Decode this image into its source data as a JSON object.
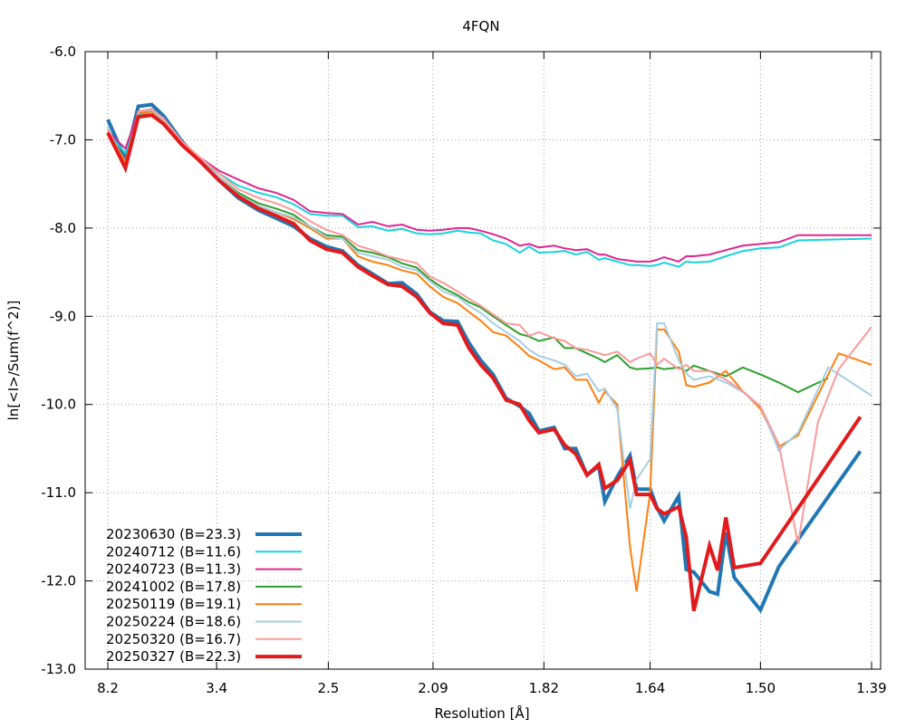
{
  "chart_data": {
    "type": "line",
    "title": "4FQN",
    "xlabel": "Resolution [Å]",
    "ylabel": "ln[<I>/Sum(f^2)]",
    "xaxis": "resolution shown as d-spacing; ticks placed uniformly in 1/d^2",
    "xlim_d": [
      8.2,
      1.39
    ],
    "ylim": [
      -13.0,
      -6.0
    ],
    "grid": true,
    "legend_position": "bottom-left",
    "x_ticks": [
      {
        "label": "8.2",
        "d": 8.2
      },
      {
        "label": "3.4",
        "d": 3.4
      },
      {
        "label": "2.5",
        "d": 2.5
      },
      {
        "label": "2.09",
        "d": 2.09
      },
      {
        "label": "1.82",
        "d": 1.82
      },
      {
        "label": "1.64",
        "d": 1.64
      },
      {
        "label": "1.50",
        "d": 1.5
      },
      {
        "label": "1.39",
        "d": 1.39
      }
    ],
    "y_ticks": [
      {
        "label": "-6.0",
        "v": -6.0
      },
      {
        "label": "-7.0",
        "v": -7.0
      },
      {
        "label": "-8.0",
        "v": -8.0
      },
      {
        "label": "-9.0",
        "v": -9.0
      },
      {
        "label": "-10.0",
        "v": -10.0
      },
      {
        "label": "-11.0",
        "v": -11.0
      },
      {
        "label": "-12.0",
        "v": -12.0
      },
      {
        "label": "-13.0",
        "v": -13.0
      }
    ],
    "series": [
      {
        "name": "20230630 (B=23.3)",
        "color": "#1f77b4",
        "width": 4,
        "x": [
          8.2,
          6.15,
          5.35,
          4.78,
          4.4,
          3.96,
          3.64,
          3.37,
          3.15,
          2.96,
          2.82,
          2.7,
          2.6,
          2.51,
          2.43,
          2.36,
          2.3,
          2.24,
          2.19,
          2.14,
          2.1,
          2.06,
          2.02,
          1.99,
          1.96,
          1.93,
          1.9,
          1.87,
          1.85,
          1.83,
          1.8,
          1.78,
          1.76,
          1.74,
          1.72,
          1.71,
          1.69,
          1.67,
          1.66,
          1.64,
          1.63,
          1.62,
          1.6,
          1.59,
          1.58,
          1.56,
          1.55,
          1.54,
          1.53,
          1.5,
          1.48,
          1.4
        ],
        "y": [
          -6.77,
          -7.22,
          -6.62,
          -6.6,
          -6.73,
          -7.02,
          -7.24,
          -7.46,
          -7.66,
          -7.8,
          -7.89,
          -7.98,
          -8.12,
          -8.21,
          -8.26,
          -8.42,
          -8.52,
          -8.63,
          -8.62,
          -8.75,
          -8.95,
          -9.05,
          -9.06,
          -9.3,
          -9.5,
          -9.66,
          -9.93,
          -10.02,
          -10.1,
          -10.3,
          -10.26,
          -10.5,
          -10.5,
          -10.8,
          -10.7,
          -11.1,
          -10.82,
          -10.58,
          -10.96,
          -10.96,
          -11.17,
          -11.32,
          -11.04,
          -11.87,
          -11.9,
          -12.12,
          -12.15,
          -11.45,
          -11.96,
          -12.33,
          -11.84,
          -10.53
        ]
      },
      {
        "name": "20240712 (B=11.6)",
        "color": "#17d3dd",
        "width": 2,
        "x": [
          8.2,
          6.15,
          5.35,
          4.78,
          4.4,
          3.96,
          3.64,
          3.37,
          3.15,
          2.96,
          2.82,
          2.7,
          2.6,
          2.51,
          2.43,
          2.36,
          2.3,
          2.24,
          2.19,
          2.14,
          2.1,
          2.06,
          2.02,
          1.99,
          1.96,
          1.93,
          1.9,
          1.87,
          1.85,
          1.83,
          1.8,
          1.78,
          1.76,
          1.74,
          1.72,
          1.71,
          1.69,
          1.67,
          1.66,
          1.64,
          1.63,
          1.62,
          1.6,
          1.59,
          1.58,
          1.56,
          1.54,
          1.52,
          1.5,
          1.48,
          1.46,
          1.39
        ],
        "y": [
          -6.92,
          -7.15,
          -6.72,
          -6.68,
          -6.78,
          -7.05,
          -7.22,
          -7.38,
          -7.52,
          -7.6,
          -7.65,
          -7.73,
          -7.84,
          -7.86,
          -7.86,
          -7.99,
          -7.98,
          -8.03,
          -8.01,
          -8.06,
          -8.07,
          -8.06,
          -8.03,
          -8.05,
          -8.06,
          -8.14,
          -8.18,
          -8.28,
          -8.21,
          -8.28,
          -8.27,
          -8.26,
          -8.3,
          -8.27,
          -8.36,
          -8.34,
          -8.38,
          -8.42,
          -8.42,
          -8.43,
          -8.42,
          -8.39,
          -8.44,
          -8.38,
          -8.39,
          -8.38,
          -8.32,
          -8.26,
          -8.23,
          -8.22,
          -8.14,
          -8.12
        ]
      },
      {
        "name": "20240723 (B=11.3)",
        "color": "#e0268f",
        "width": 2,
        "x": [
          8.2,
          6.15,
          5.35,
          4.78,
          4.4,
          3.96,
          3.64,
          3.37,
          3.15,
          2.96,
          2.82,
          2.7,
          2.6,
          2.51,
          2.43,
          2.36,
          2.3,
          2.24,
          2.19,
          2.14,
          2.1,
          2.06,
          2.02,
          1.99,
          1.96,
          1.93,
          1.9,
          1.87,
          1.85,
          1.83,
          1.8,
          1.78,
          1.76,
          1.74,
          1.72,
          1.71,
          1.69,
          1.67,
          1.66,
          1.64,
          1.63,
          1.62,
          1.6,
          1.59,
          1.58,
          1.56,
          1.54,
          1.52,
          1.5,
          1.48,
          1.46,
          1.39
        ],
        "y": [
          -6.9,
          -7.1,
          -6.68,
          -6.65,
          -6.76,
          -7.03,
          -7.2,
          -7.35,
          -7.45,
          -7.55,
          -7.6,
          -7.68,
          -7.81,
          -7.83,
          -7.84,
          -7.96,
          -7.93,
          -7.98,
          -7.96,
          -8.02,
          -8.03,
          -8.02,
          -8.0,
          -8.0,
          -8.03,
          -8.07,
          -8.12,
          -8.2,
          -8.18,
          -8.22,
          -8.2,
          -8.23,
          -8.25,
          -8.24,
          -8.3,
          -8.3,
          -8.35,
          -8.37,
          -8.38,
          -8.38,
          -8.36,
          -8.33,
          -8.38,
          -8.32,
          -8.32,
          -8.3,
          -8.25,
          -8.2,
          -8.18,
          -8.16,
          -8.08,
          -8.08
        ]
      },
      {
        "name": "20241002 (B=17.8)",
        "color": "#2ca02c",
        "width": 2,
        "x": [
          8.2,
          6.15,
          5.35,
          4.78,
          4.4,
          3.96,
          3.64,
          3.37,
          3.15,
          2.96,
          2.82,
          2.7,
          2.6,
          2.51,
          2.43,
          2.36,
          2.3,
          2.24,
          2.19,
          2.14,
          2.1,
          2.06,
          2.02,
          1.99,
          1.96,
          1.93,
          1.9,
          1.87,
          1.85,
          1.83,
          1.8,
          1.78,
          1.76,
          1.74,
          1.72,
          1.71,
          1.69,
          1.67,
          1.66,
          1.64,
          1.63,
          1.62,
          1.6,
          1.59,
          1.58,
          1.56,
          1.54,
          1.52,
          1.5,
          1.48,
          1.46,
          1.43
        ],
        "y": [
          -6.92,
          -7.28,
          -6.7,
          -6.67,
          -6.78,
          -7.05,
          -7.22,
          -7.42,
          -7.6,
          -7.72,
          -7.78,
          -7.85,
          -7.98,
          -8.08,
          -8.1,
          -8.25,
          -8.28,
          -8.33,
          -8.4,
          -8.45,
          -8.58,
          -8.68,
          -8.76,
          -8.84,
          -8.9,
          -9.0,
          -9.1,
          -9.2,
          -9.23,
          -9.28,
          -9.24,
          -9.36,
          -9.36,
          -9.42,
          -9.48,
          -9.52,
          -9.44,
          -9.58,
          -9.6,
          -9.59,
          -9.58,
          -9.6,
          -9.58,
          -9.62,
          -9.56,
          -9.62,
          -9.68,
          -9.58,
          -9.66,
          -9.75,
          -9.86,
          -9.7
        ]
      },
      {
        "name": "20250119 (B=19.1)",
        "color": "#ff7f0e",
        "width": 2,
        "x": [
          8.2,
          6.15,
          5.35,
          4.78,
          4.4,
          3.96,
          3.64,
          3.37,
          3.15,
          2.96,
          2.82,
          2.7,
          2.6,
          2.51,
          2.43,
          2.36,
          2.3,
          2.24,
          2.19,
          2.14,
          2.1,
          2.06,
          2.02,
          1.99,
          1.96,
          1.93,
          1.9,
          1.87,
          1.85,
          1.83,
          1.8,
          1.78,
          1.76,
          1.74,
          1.72,
          1.71,
          1.69,
          1.67,
          1.66,
          1.64,
          1.63,
          1.62,
          1.6,
          1.59,
          1.58,
          1.56,
          1.54,
          1.52,
          1.5,
          1.48,
          1.46,
          1.42,
          1.39
        ],
        "y": [
          -6.9,
          -7.25,
          -6.7,
          -6.68,
          -6.78,
          -7.05,
          -7.22,
          -7.42,
          -7.62,
          -7.75,
          -7.82,
          -7.9,
          -8.0,
          -8.12,
          -8.12,
          -8.32,
          -8.38,
          -8.42,
          -8.48,
          -8.52,
          -8.66,
          -8.78,
          -8.85,
          -8.95,
          -9.05,
          -9.18,
          -9.22,
          -9.35,
          -9.45,
          -9.5,
          -9.6,
          -9.58,
          -9.72,
          -9.72,
          -9.98,
          -9.85,
          -10.0,
          -11.62,
          -12.12,
          -11.0,
          -9.15,
          -9.15,
          -9.4,
          -9.78,
          -9.8,
          -9.75,
          -9.62,
          -9.85,
          -10.05,
          -10.48,
          -10.35,
          -9.42,
          -9.55
        ]
      },
      {
        "name": "20250224 (B=18.6)",
        "color": "#a6cee3",
        "width": 2,
        "x": [
          8.2,
          6.15,
          5.35,
          4.78,
          4.4,
          3.96,
          3.64,
          3.37,
          3.15,
          2.96,
          2.82,
          2.7,
          2.6,
          2.51,
          2.43,
          2.36,
          2.3,
          2.24,
          2.19,
          2.14,
          2.1,
          2.06,
          2.02,
          1.99,
          1.96,
          1.93,
          1.9,
          1.87,
          1.85,
          1.83,
          1.8,
          1.78,
          1.76,
          1.74,
          1.72,
          1.71,
          1.69,
          1.67,
          1.66,
          1.64,
          1.63,
          1.62,
          1.6,
          1.59,
          1.58,
          1.56,
          1.54,
          1.52,
          1.5,
          1.48,
          1.46,
          1.43,
          1.39
        ],
        "y": [
          -6.85,
          -7.35,
          -6.68,
          -6.66,
          -6.78,
          -7.05,
          -7.22,
          -7.42,
          -7.62,
          -7.75,
          -7.82,
          -7.88,
          -7.98,
          -8.1,
          -8.12,
          -8.28,
          -8.32,
          -8.36,
          -8.44,
          -8.48,
          -8.6,
          -8.72,
          -8.78,
          -8.88,
          -8.96,
          -9.08,
          -9.18,
          -9.28,
          -9.38,
          -9.45,
          -9.5,
          -9.55,
          -9.68,
          -9.65,
          -9.85,
          -9.82,
          -10.05,
          -11.18,
          -10.85,
          -10.62,
          -9.08,
          -9.08,
          -9.5,
          -9.65,
          -9.72,
          -9.68,
          -9.75,
          -9.86,
          -10.02,
          -10.52,
          -10.32,
          -9.58,
          -9.9
        ]
      },
      {
        "name": "20250320 (B=16.7)",
        "color": "#fb9a99",
        "width": 2,
        "x": [
          8.2,
          6.15,
          5.35,
          4.78,
          4.4,
          3.96,
          3.64,
          3.37,
          3.15,
          2.96,
          2.82,
          2.7,
          2.6,
          2.51,
          2.43,
          2.36,
          2.3,
          2.24,
          2.19,
          2.14,
          2.1,
          2.06,
          2.02,
          1.99,
          1.96,
          1.93,
          1.9,
          1.87,
          1.85,
          1.83,
          1.8,
          1.78,
          1.76,
          1.74,
          1.72,
          1.71,
          1.69,
          1.67,
          1.66,
          1.64,
          1.63,
          1.62,
          1.6,
          1.59,
          1.58,
          1.56,
          1.54,
          1.52,
          1.5,
          1.48,
          1.46,
          1.44,
          1.42,
          1.39
        ],
        "y": [
          -6.88,
          -7.3,
          -6.68,
          -6.65,
          -6.76,
          -7.02,
          -7.2,
          -7.38,
          -7.56,
          -7.66,
          -7.72,
          -7.8,
          -7.92,
          -8.02,
          -8.08,
          -8.2,
          -8.25,
          -8.32,
          -8.36,
          -8.4,
          -8.55,
          -8.62,
          -8.72,
          -8.8,
          -8.88,
          -8.98,
          -9.08,
          -9.1,
          -9.22,
          -9.18,
          -9.25,
          -9.28,
          -9.36,
          -9.38,
          -9.42,
          -9.44,
          -9.4,
          -9.52,
          -9.48,
          -9.42,
          -9.55,
          -9.48,
          -9.6,
          -9.55,
          -9.62,
          -9.62,
          -9.72,
          -9.85,
          -10.02,
          -10.45,
          -11.58,
          -10.2,
          -9.6,
          -9.12
        ]
      },
      {
        "name": "20250327 (B=22.3)",
        "color": "#e31a1c",
        "width": 4,
        "x": [
          8.2,
          6.15,
          5.35,
          4.78,
          4.4,
          3.96,
          3.64,
          3.37,
          3.15,
          2.96,
          2.82,
          2.7,
          2.6,
          2.51,
          2.43,
          2.36,
          2.3,
          2.24,
          2.19,
          2.14,
          2.1,
          2.06,
          2.02,
          1.99,
          1.96,
          1.93,
          1.9,
          1.87,
          1.85,
          1.83,
          1.8,
          1.78,
          1.76,
          1.74,
          1.72,
          1.71,
          1.69,
          1.67,
          1.66,
          1.64,
          1.63,
          1.62,
          1.6,
          1.59,
          1.58,
          1.56,
          1.55,
          1.54,
          1.53,
          1.5,
          1.4
        ],
        "y": [
          -6.92,
          -7.32,
          -6.74,
          -6.72,
          -6.82,
          -7.06,
          -7.24,
          -7.46,
          -7.64,
          -7.78,
          -7.86,
          -7.95,
          -8.14,
          -8.24,
          -8.28,
          -8.44,
          -8.54,
          -8.64,
          -8.66,
          -8.78,
          -8.96,
          -9.08,
          -9.1,
          -9.36,
          -9.55,
          -9.7,
          -9.95,
          -10.0,
          -10.18,
          -10.32,
          -10.28,
          -10.46,
          -10.56,
          -10.8,
          -10.68,
          -10.95,
          -10.86,
          -10.63,
          -11.02,
          -11.02,
          -11.18,
          -11.24,
          -11.16,
          -11.5,
          -12.34,
          -11.6,
          -11.88,
          -11.28,
          -11.85,
          -11.8,
          -10.14
        ]
      }
    ]
  }
}
